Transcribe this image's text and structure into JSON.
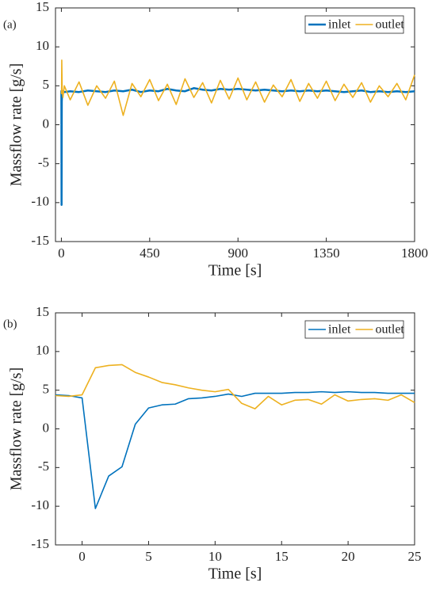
{
  "chart_data": [
    {
      "type": "line",
      "panel_label": "(a)",
      "x_label": "Time [s]",
      "y_label": "Massflow rate [g/s]",
      "x": [
        0,
        1,
        2,
        4,
        8,
        15,
        45,
        90,
        135,
        180,
        225,
        270,
        315,
        360,
        405,
        450,
        495,
        540,
        585,
        630,
        675,
        720,
        765,
        810,
        855,
        900,
        945,
        990,
        1035,
        1080,
        1125,
        1170,
        1215,
        1260,
        1305,
        1350,
        1395,
        1440,
        1485,
        1530,
        1575,
        1620,
        1665,
        1710,
        1755,
        1800
      ],
      "series": [
        {
          "name": "inlet",
          "color": "#0072bd",
          "values": [
            4.4,
            -10.3,
            3.0,
            4.1,
            4.3,
            4.2,
            4.3,
            4.2,
            4.4,
            4.3,
            4.2,
            4.4,
            4.3,
            4.5,
            4.2,
            4.4,
            4.3,
            4.6,
            4.4,
            4.3,
            4.7,
            4.5,
            4.4,
            4.6,
            4.5,
            4.6,
            4.5,
            4.4,
            4.5,
            4.4,
            4.3,
            4.4,
            4.3,
            4.4,
            4.3,
            4.4,
            4.3,
            4.2,
            4.3,
            4.4,
            4.2,
            4.3,
            4.2,
            4.3,
            4.2,
            4.3
          ]
        },
        {
          "name": "outlet",
          "color": "#edb120",
          "values": [
            4.3,
            4.0,
            8.3,
            4.6,
            3.5,
            5.0,
            3.2,
            5.5,
            2.5,
            5.0,
            3.4,
            5.6,
            1.2,
            5.3,
            3.6,
            5.8,
            3.1,
            5.2,
            2.6,
            5.9,
            3.5,
            5.4,
            2.8,
            5.7,
            3.3,
            6.0,
            3.2,
            5.5,
            2.9,
            5.1,
            3.6,
            5.8,
            3.0,
            5.3,
            3.4,
            5.6,
            3.1,
            5.2,
            3.5,
            5.4,
            2.9,
            5.0,
            3.6,
            5.3,
            3.2,
            6.4
          ]
        }
      ],
      "xlim": [
        -30,
        1800
      ],
      "xticks": [
        0,
        450,
        900,
        1350,
        1800
      ],
      "ylim": [
        -15,
        15
      ],
      "yticks": [
        -15,
        -10,
        -5,
        0,
        5,
        10,
        15
      ],
      "legend": "upper right"
    },
    {
      "type": "line",
      "panel_label": "(b)",
      "x_label": "Time [s]",
      "y_label": "Massflow rate [g/s]",
      "x": [
        -2,
        -1,
        0,
        1,
        2,
        3,
        4,
        5,
        6,
        7,
        8,
        9,
        10,
        11,
        12,
        13,
        14,
        15,
        16,
        17,
        18,
        19,
        20,
        21,
        22,
        23,
        24,
        25
      ],
      "series": [
        {
          "name": "inlet",
          "color": "#0072bd",
          "values": [
            4.4,
            4.3,
            4.0,
            -10.3,
            -6.1,
            -4.9,
            0.6,
            2.7,
            3.1,
            3.2,
            3.9,
            4.0,
            4.2,
            4.5,
            4.2,
            4.6,
            4.6,
            4.6,
            4.7,
            4.7,
            4.8,
            4.7,
            4.8,
            4.7,
            4.7,
            4.6,
            4.6,
            4.6
          ]
        },
        {
          "name": "outlet",
          "color": "#edb120",
          "values": [
            4.3,
            4.2,
            4.4,
            7.9,
            8.2,
            8.3,
            7.3,
            6.7,
            6.0,
            5.7,
            5.3,
            5.0,
            4.8,
            5.1,
            3.3,
            2.6,
            4.2,
            3.1,
            3.7,
            3.8,
            3.2,
            4.4,
            3.6,
            3.8,
            3.9,
            3.7,
            4.4,
            3.4
          ]
        }
      ],
      "xlim": [
        -2,
        25
      ],
      "xticks": [
        0,
        5,
        10,
        15,
        20,
        25
      ],
      "ylim": [
        -15,
        15
      ],
      "yticks": [
        -15,
        -10,
        -5,
        0,
        5,
        10,
        15
      ],
      "legend": "upper right"
    }
  ]
}
